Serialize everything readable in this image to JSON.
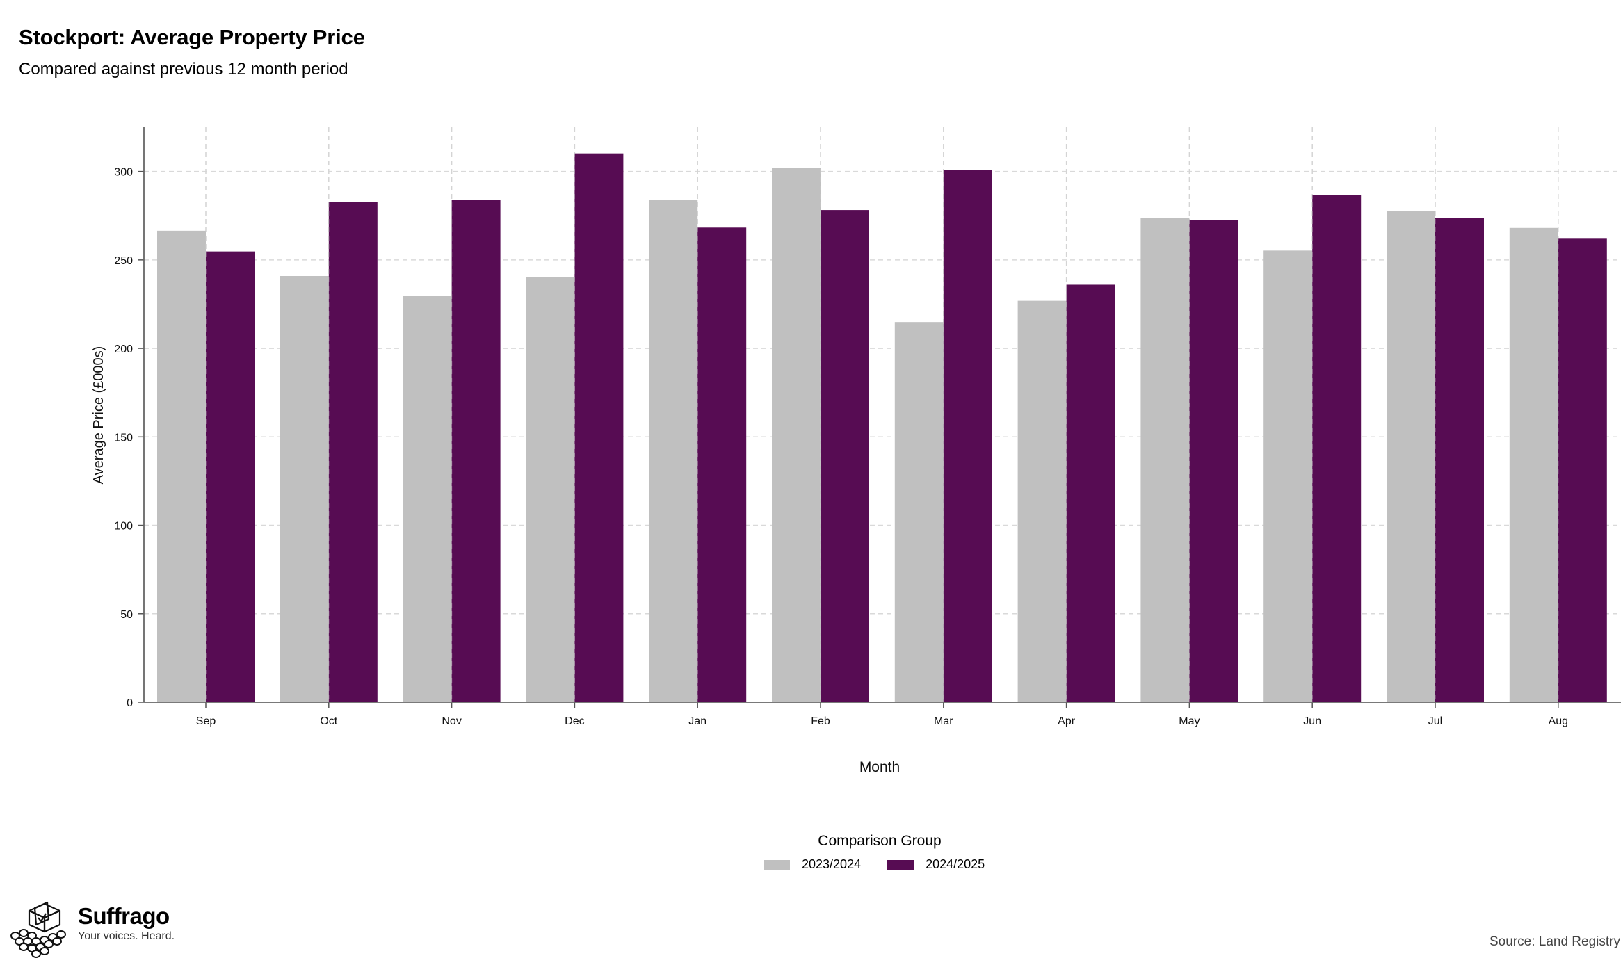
{
  "header": {
    "title": "Stockport: Average Property Price",
    "subtitle": "Compared against previous 12 month period"
  },
  "legend": {
    "title": "Comparison Group",
    "items": [
      {
        "label": "2023/2024",
        "color": "#c0c0c0"
      },
      {
        "label": "2024/2025",
        "color": "#570c53"
      }
    ]
  },
  "branding": {
    "name": "Suffrago",
    "tagline": "Your voices. Heard.",
    "icon": "ballot-box-icon"
  },
  "source": "Source: Land Registry",
  "chart_data": {
    "type": "bar",
    "xlabel": "Month",
    "ylabel": "Average Price (£000s)",
    "ylim": [
      0,
      325
    ],
    "yticks": [
      0,
      50,
      100,
      150,
      200,
      250,
      300
    ],
    "grid": true,
    "legend_position": "bottom",
    "categories": [
      "Sep",
      "Oct",
      "Nov",
      "Dec",
      "Jan",
      "Feb",
      "Mar",
      "Apr",
      "May",
      "Jun",
      "Jul",
      "Aug"
    ],
    "series": [
      {
        "name": "2023/2024",
        "color": "#c0c0c0",
        "values": [
          266.5,
          240.9,
          229.5,
          240.4,
          284.1,
          301.9,
          214.9,
          226.9,
          273.9,
          255.3,
          277.5,
          268.1
        ]
      },
      {
        "name": "2024/2025",
        "color": "#570c53",
        "values": [
          254.8,
          282.6,
          284.1,
          310.2,
          268.3,
          278.2,
          300.9,
          236.0,
          272.4,
          286.7,
          273.9,
          262.0
        ]
      }
    ]
  }
}
